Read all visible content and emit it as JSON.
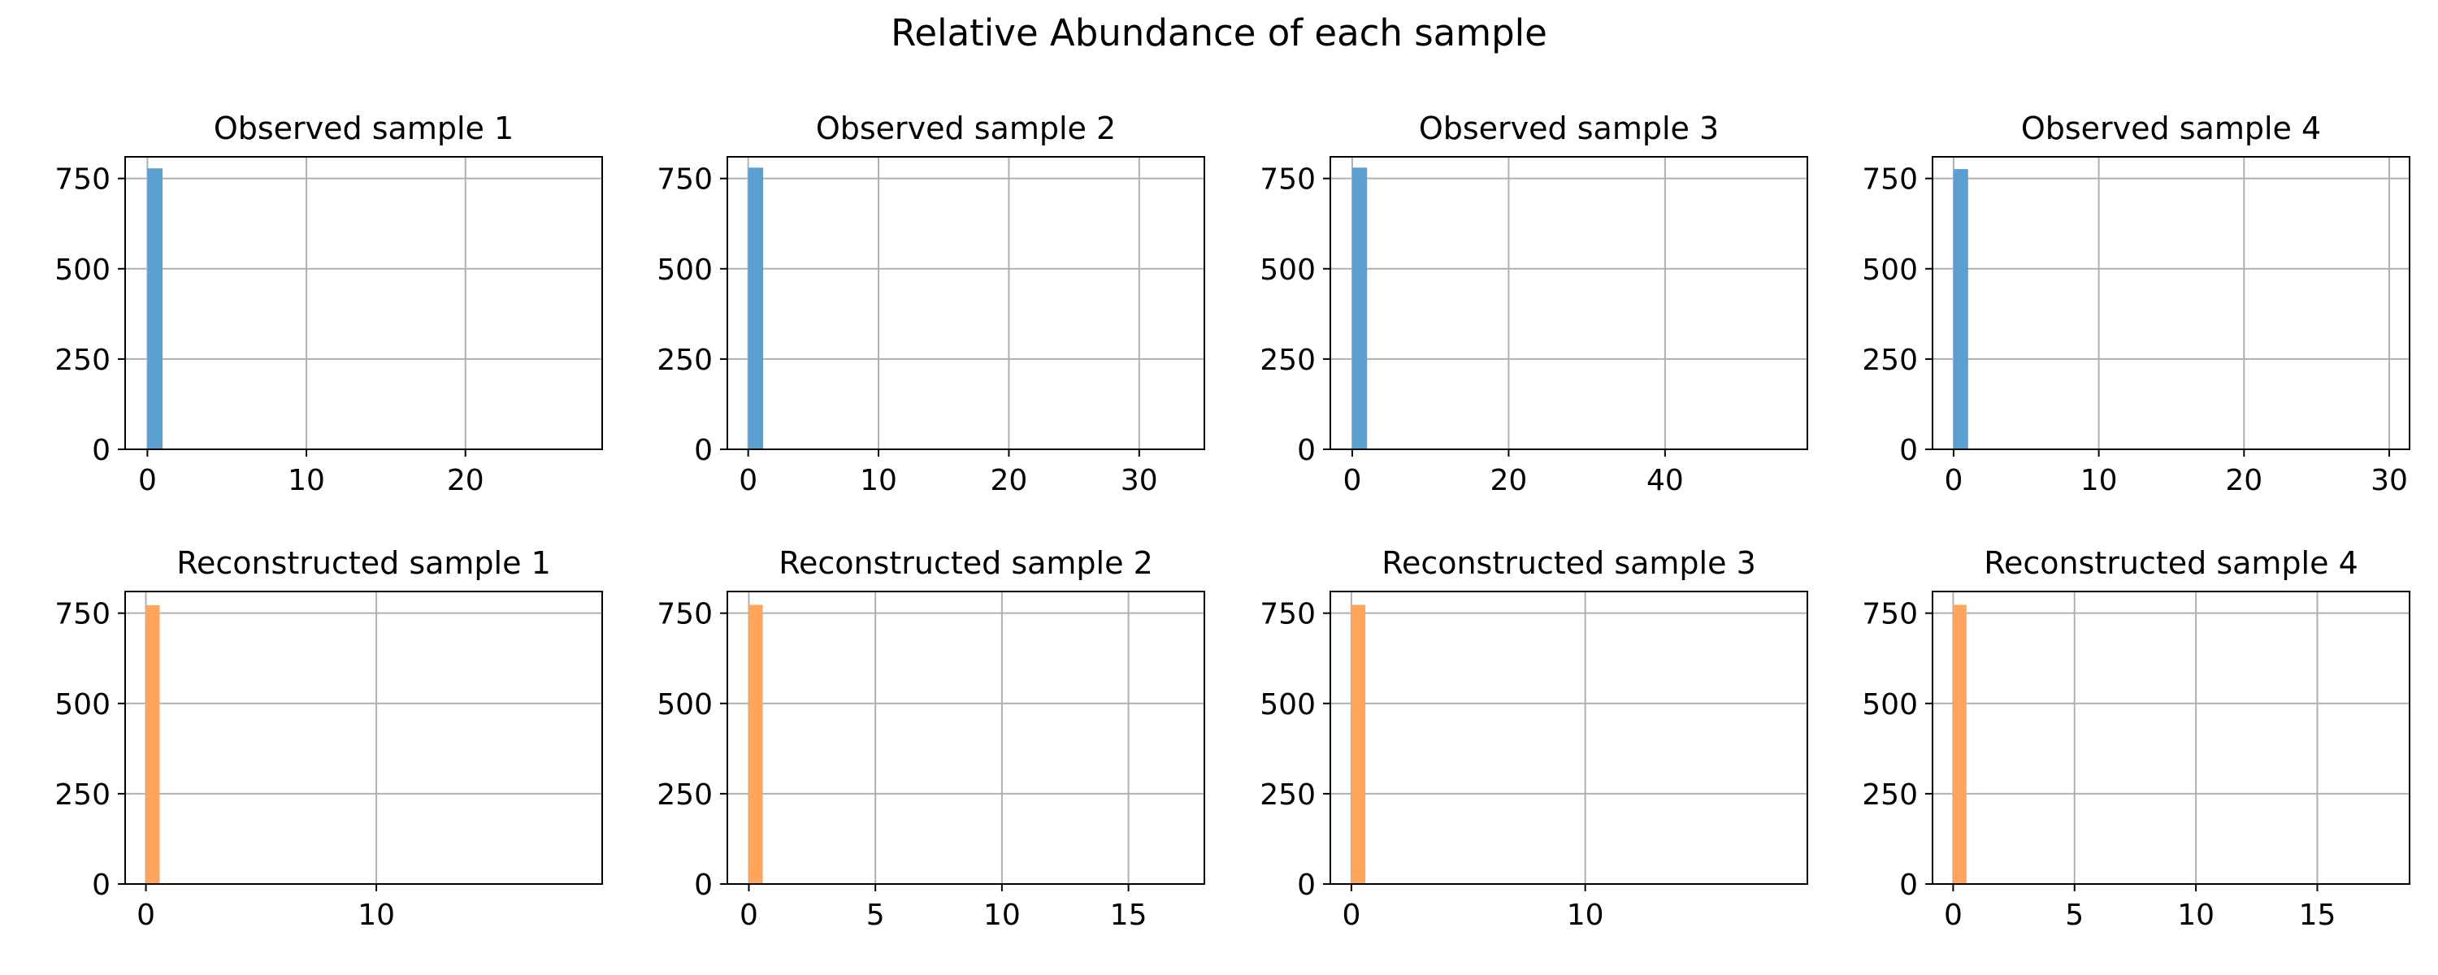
{
  "figure": {
    "suptitle": "Relative Abundance of each sample"
  },
  "colors": {
    "observed": "#5b9fd0",
    "reconstructed": "#ffa55b",
    "grid": "#b0b0b0",
    "axis": "#000000"
  },
  "chart_data": [
    {
      "type": "histogram",
      "title": "Observed sample 1",
      "color": "observed",
      "xlim": [
        -1.4,
        28.6
      ],
      "xticks": [
        0,
        10,
        20
      ],
      "ylim": [
        0,
        810
      ],
      "yticks": [
        0,
        250,
        500,
        750
      ],
      "grid": true,
      "bins": [
        {
          "x0": 0,
          "x1": 0.95,
          "count": 778
        }
      ]
    },
    {
      "type": "histogram",
      "title": "Observed sample 2",
      "color": "observed",
      "xlim": [
        -1.6,
        35.0
      ],
      "xticks": [
        0,
        10,
        20,
        30
      ],
      "ylim": [
        0,
        810
      ],
      "yticks": [
        0,
        250,
        500,
        750
      ],
      "grid": true,
      "bins": [
        {
          "x0": 0,
          "x1": 1.15,
          "count": 780
        }
      ]
    },
    {
      "type": "histogram",
      "title": "Observed sample 3",
      "color": "observed",
      "xlim": [
        -2.8,
        58.2
      ],
      "xticks": [
        0,
        20,
        40
      ],
      "ylim": [
        0,
        810
      ],
      "yticks": [
        0,
        250,
        500,
        750
      ],
      "grid": true,
      "bins": [
        {
          "x0": 0,
          "x1": 1.9,
          "count": 780
        }
      ]
    },
    {
      "type": "histogram",
      "title": "Observed sample 4",
      "color": "observed",
      "xlim": [
        -1.45,
        31.4
      ],
      "xticks": [
        0,
        10,
        20,
        30
      ],
      "ylim": [
        0,
        810
      ],
      "yticks": [
        0,
        250,
        500,
        750
      ],
      "grid": true,
      "bins": [
        {
          "x0": 0,
          "x1": 1.0,
          "count": 776
        }
      ]
    },
    {
      "type": "histogram",
      "title": "Reconstructed sample 1",
      "color": "reconstructed",
      "xlim": [
        -0.9,
        19.8
      ],
      "xticks": [
        0,
        10
      ],
      "ylim": [
        0,
        810
      ],
      "yticks": [
        0,
        250,
        500,
        750
      ],
      "grid": true,
      "bins": [
        {
          "x0": 0,
          "x1": 0.6,
          "count": 772
        }
      ]
    },
    {
      "type": "histogram",
      "title": "Reconstructed sample 2",
      "color": "reconstructed",
      "xlim": [
        -0.85,
        18.0
      ],
      "xticks": [
        0,
        5,
        10,
        15
      ],
      "ylim": [
        0,
        810
      ],
      "yticks": [
        0,
        250,
        500,
        750
      ],
      "grid": true,
      "bins": [
        {
          "x0": 0,
          "x1": 0.55,
          "count": 773
        }
      ]
    },
    {
      "type": "histogram",
      "title": "Reconstructed sample 3",
      "color": "reconstructed",
      "xlim": [
        -0.9,
        19.5
      ],
      "xticks": [
        0,
        10
      ],
      "ylim": [
        0,
        810
      ],
      "yticks": [
        0,
        250,
        500,
        750
      ],
      "grid": true,
      "bins": [
        {
          "x0": 0,
          "x1": 0.6,
          "count": 773
        }
      ]
    },
    {
      "type": "histogram",
      "title": "Reconstructed sample 4",
      "color": "reconstructed",
      "xlim": [
        -0.85,
        18.8
      ],
      "xticks": [
        0,
        5,
        10,
        15
      ],
      "ylim": [
        0,
        810
      ],
      "yticks": [
        0,
        250,
        500,
        750
      ],
      "grid": true,
      "bins": [
        {
          "x0": 0,
          "x1": 0.55,
          "count": 773
        }
      ]
    }
  ]
}
